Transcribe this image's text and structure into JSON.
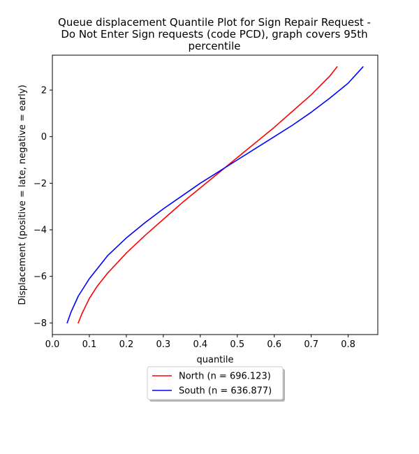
{
  "chart_data": {
    "type": "line",
    "title_lines": [
      "Queue displacement Quantile Plot for Sign Repair Request -",
      "Do Not Enter Sign  requests (code PCD), graph covers 95th",
      "percentile"
    ],
    "xlabel": "quantile",
    "ylabel": "Displacement (positive = late, negative = early)",
    "xlim": [
      0.0,
      0.88
    ],
    "ylim": [
      -8.5,
      3.5
    ],
    "xticks": [
      0.0,
      0.1,
      0.2,
      0.3,
      0.4,
      0.5,
      0.6,
      0.7,
      0.8
    ],
    "xtick_labels": [
      "0.0",
      "0.1",
      "0.2",
      "0.3",
      "0.4",
      "0.5",
      "0.6",
      "0.7",
      "0.8"
    ],
    "yticks": [
      2,
      0,
      -2,
      -4,
      -6,
      -8
    ],
    "ytick_labels": [
      "2",
      "0",
      "−2",
      "−4",
      "−6",
      "−8"
    ],
    "grid": false,
    "legend_position": "bottom-center",
    "series": [
      {
        "name": "North (n = 696.123)",
        "color": "#ff0000",
        "x": [
          0.07,
          0.08,
          0.1,
          0.12,
          0.15,
          0.2,
          0.25,
          0.3,
          0.35,
          0.4,
          0.45,
          0.5,
          0.55,
          0.6,
          0.65,
          0.7,
          0.75,
          0.77
        ],
        "y": [
          -8.0,
          -7.6,
          -6.95,
          -6.45,
          -5.85,
          -5.0,
          -4.25,
          -3.55,
          -2.85,
          -2.2,
          -1.55,
          -0.9,
          -0.25,
          0.4,
          1.1,
          1.8,
          2.6,
          3.0
        ]
      },
      {
        "name": "South (n = 636.877)",
        "color": "#0000ff",
        "x": [
          0.04,
          0.05,
          0.07,
          0.1,
          0.15,
          0.2,
          0.25,
          0.3,
          0.35,
          0.4,
          0.45,
          0.5,
          0.55,
          0.6,
          0.65,
          0.7,
          0.75,
          0.8,
          0.84
        ],
        "y": [
          -8.0,
          -7.55,
          -6.85,
          -6.1,
          -5.1,
          -4.35,
          -3.7,
          -3.1,
          -2.55,
          -2.0,
          -1.5,
          -1.0,
          -0.5,
          0.0,
          0.5,
          1.05,
          1.65,
          2.3,
          3.0
        ]
      }
    ]
  }
}
